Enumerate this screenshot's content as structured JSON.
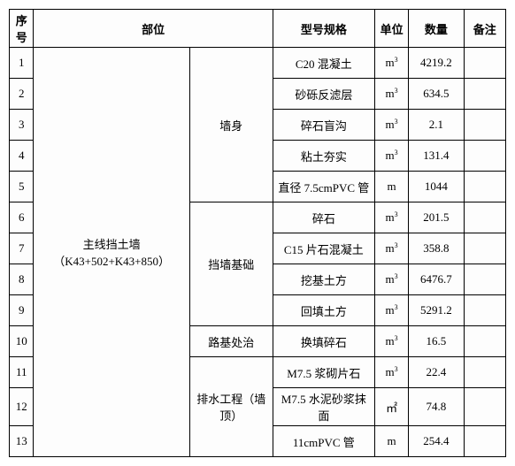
{
  "headers": {
    "seq": "序号",
    "part": "部位",
    "spec": "型号规格",
    "unit": "单位",
    "qty": "数量",
    "note": "备注"
  },
  "mainPart": "主线挡土墙（K43+502+K43+850）",
  "subParts": {
    "wallBody": "墙身",
    "foundation": "挡墙基础",
    "roadbed": "路基处治",
    "drainage": "排水工程（墙顶）"
  },
  "rows": {
    "r1": {
      "seq": "1",
      "spec": "C20 混凝土",
      "unit": "m³",
      "qty": "4219.2",
      "note": ""
    },
    "r2": {
      "seq": "2",
      "spec": "砂砾反滤层",
      "unit": "m³",
      "qty": "634.5",
      "note": ""
    },
    "r3": {
      "seq": "3",
      "spec": "碎石盲沟",
      "unit": "m³",
      "qty": "2.1",
      "note": ""
    },
    "r4": {
      "seq": "4",
      "spec": "粘土夯实",
      "unit": "m³",
      "qty": "131.4",
      "note": ""
    },
    "r5": {
      "seq": "5",
      "spec": "直径 7.5cmPVC 管",
      "unit": "m",
      "qty": "1044",
      "note": ""
    },
    "r6": {
      "seq": "6",
      "spec": "碎石",
      "unit": "m³",
      "qty": "201.5",
      "note": ""
    },
    "r7": {
      "seq": "7",
      "spec": "C15 片石混凝土",
      "unit": "m³",
      "qty": "358.8",
      "note": ""
    },
    "r8": {
      "seq": "8",
      "spec": "挖基土方",
      "unit": "m³",
      "qty": "6476.7",
      "note": ""
    },
    "r9": {
      "seq": "9",
      "spec": "回填土方",
      "unit": "m³",
      "qty": "5291.2",
      "note": ""
    },
    "r10": {
      "seq": "10",
      "spec": "换填碎石",
      "unit": "m³",
      "qty": "16.5",
      "note": ""
    },
    "r11": {
      "seq": "11",
      "spec": "M7.5 浆砌片石",
      "unit": "m³",
      "qty": "22.4",
      "note": ""
    },
    "r12": {
      "seq": "12",
      "spec": "M7.5 水泥砂浆抹面",
      "unit": "㎡",
      "qty": "74.8",
      "note": ""
    },
    "r13": {
      "seq": "13",
      "spec": "11cmPVC 管",
      "unit": "m",
      "qty": "254.4",
      "note": ""
    }
  }
}
